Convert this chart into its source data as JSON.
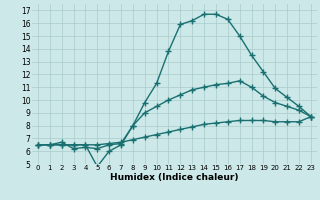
{
  "xlabel": "Humidex (Indice chaleur)",
  "xlim": [
    -0.5,
    23.5
  ],
  "ylim": [
    5,
    17.5
  ],
  "yticks": [
    5,
    6,
    7,
    8,
    9,
    10,
    11,
    12,
    13,
    14,
    15,
    16,
    17
  ],
  "xticks": [
    0,
    1,
    2,
    3,
    4,
    5,
    6,
    7,
    8,
    9,
    10,
    11,
    12,
    13,
    14,
    15,
    16,
    17,
    18,
    19,
    20,
    21,
    22,
    23
  ],
  "bg_color": "#cce8e8",
  "grid_color": "#aacccc",
  "line_color": "#1a7070",
  "line1_x": [
    0,
    1,
    2,
    3,
    4,
    5,
    6,
    7,
    8,
    9,
    10,
    11,
    12,
    13,
    14,
    15,
    16,
    17,
    18,
    19,
    20,
    21,
    22,
    23
  ],
  "line1_y": [
    6.5,
    6.5,
    6.5,
    6.5,
    6.5,
    4.8,
    6.0,
    6.5,
    8.0,
    9.8,
    11.3,
    13.8,
    15.9,
    16.2,
    16.7,
    16.7,
    16.3,
    15.0,
    13.5,
    12.2,
    10.9,
    10.2,
    9.5,
    8.7
  ],
  "line2_x": [
    0,
    1,
    2,
    3,
    4,
    5,
    6,
    7,
    8,
    9,
    10,
    11,
    12,
    13,
    14,
    15,
    16,
    17,
    18,
    19,
    20,
    21,
    22,
    23
  ],
  "line2_y": [
    6.5,
    6.5,
    6.7,
    6.2,
    6.3,
    6.2,
    6.5,
    6.6,
    8.0,
    9.0,
    9.5,
    10.0,
    10.4,
    10.8,
    11.0,
    11.2,
    11.3,
    11.5,
    11.0,
    10.3,
    9.8,
    9.5,
    9.2,
    8.7
  ],
  "line3_x": [
    0,
    1,
    2,
    3,
    4,
    5,
    6,
    7,
    8,
    9,
    10,
    11,
    12,
    13,
    14,
    15,
    16,
    17,
    18,
    19,
    20,
    21,
    22,
    23
  ],
  "line3_y": [
    6.5,
    6.5,
    6.5,
    6.5,
    6.5,
    6.5,
    6.6,
    6.7,
    6.9,
    7.1,
    7.3,
    7.5,
    7.7,
    7.9,
    8.1,
    8.2,
    8.3,
    8.4,
    8.4,
    8.4,
    8.3,
    8.3,
    8.3,
    8.7
  ],
  "marker": "+",
  "markersize": 4,
  "linewidth": 1.0
}
